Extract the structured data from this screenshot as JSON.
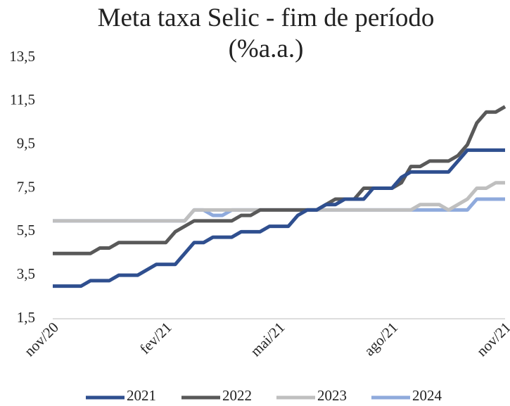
{
  "chart_data": {
    "type": "line",
    "title": "Meta taxa Selic - fim de período (%a.a.)",
    "categories": [
      "nov/20",
      null,
      null,
      null,
      null,
      null,
      null,
      null,
      null,
      null,
      null,
      null,
      "fev/21",
      null,
      null,
      null,
      null,
      null,
      null,
      null,
      null,
      null,
      null,
      null,
      "mai/21",
      null,
      null,
      null,
      null,
      null,
      null,
      null,
      null,
      null,
      null,
      null,
      "ago/21",
      null,
      null,
      null,
      null,
      null,
      null,
      null,
      null,
      null,
      null,
      null,
      "nov/21"
    ],
    "series": [
      {
        "name": "2021",
        "color": "#2f4f8f",
        "values": [
          3.0,
          3.0,
          3.0,
          3.0,
          3.25,
          3.25,
          3.25,
          3.5,
          3.5,
          3.5,
          3.75,
          4.0,
          4.0,
          4.0,
          4.5,
          5.0,
          5.0,
          5.25,
          5.25,
          5.25,
          5.5,
          5.5,
          5.5,
          5.75,
          5.75,
          5.75,
          6.25,
          6.5,
          6.5,
          6.75,
          6.75,
          7.0,
          7.0,
          7.0,
          7.5,
          7.5,
          7.5,
          8.0,
          8.25,
          8.25,
          8.25,
          8.25,
          8.25,
          8.75,
          9.25,
          9.25,
          9.25,
          9.25,
          9.25
        ]
      },
      {
        "name": "2022",
        "color": "#595959",
        "values": [
          4.5,
          4.5,
          4.5,
          4.5,
          4.5,
          4.75,
          4.75,
          5.0,
          5.0,
          5.0,
          5.0,
          5.0,
          5.0,
          5.5,
          5.75,
          6.0,
          6.0,
          6.0,
          6.0,
          6.0,
          6.25,
          6.25,
          6.5,
          6.5,
          6.5,
          6.5,
          6.5,
          6.5,
          6.5,
          6.75,
          7.0,
          7.0,
          7.0,
          7.5,
          7.5,
          7.5,
          7.5,
          7.75,
          8.5,
          8.5,
          8.75,
          8.75,
          8.75,
          9.0,
          9.5,
          10.5,
          11.0,
          11.0,
          11.25
        ]
      },
      {
        "name": "2023",
        "color": "#bfbfbf",
        "values": [
          6.0,
          6.0,
          6.0,
          6.0,
          6.0,
          6.0,
          6.0,
          6.0,
          6.0,
          6.0,
          6.0,
          6.0,
          6.0,
          6.0,
          6.0,
          6.5,
          6.5,
          6.5,
          6.5,
          6.5,
          6.5,
          6.5,
          6.5,
          6.5,
          6.5,
          6.5,
          6.5,
          6.5,
          6.5,
          6.5,
          6.5,
          6.5,
          6.5,
          6.5,
          6.5,
          6.5,
          6.5,
          6.5,
          6.5,
          6.75,
          6.75,
          6.75,
          6.5,
          6.75,
          7.0,
          7.5,
          7.5,
          7.75,
          7.75
        ]
      },
      {
        "name": "2024",
        "color": "#8faadc",
        "values": [
          6.0,
          6.0,
          6.0,
          6.0,
          6.0,
          6.0,
          6.0,
          6.0,
          6.0,
          6.0,
          6.0,
          6.0,
          6.0,
          6.0,
          6.0,
          6.5,
          6.5,
          6.25,
          6.25,
          6.5,
          6.5,
          6.5,
          6.5,
          6.5,
          6.5,
          6.5,
          6.5,
          6.5,
          6.5,
          6.5,
          6.5,
          6.5,
          6.5,
          6.5,
          6.5,
          6.5,
          6.5,
          6.5,
          6.5,
          6.5,
          6.5,
          6.5,
          6.5,
          6.5,
          6.5,
          7.0,
          7.0,
          7.0,
          7.0
        ]
      }
    ],
    "ylim": [
      1.5,
      13.5
    ],
    "yticks": [
      {
        "value": 1.5,
        "label": "1,5"
      },
      {
        "value": 3.5,
        "label": "3,5"
      },
      {
        "value": 5.5,
        "label": "5,5"
      },
      {
        "value": 7.5,
        "label": "7,5"
      },
      {
        "value": 9.5,
        "label": "9,5"
      },
      {
        "value": 11.5,
        "label": "11,5"
      },
      {
        "value": 13.5,
        "label": "13,5"
      }
    ],
    "legend": "bottom"
  }
}
